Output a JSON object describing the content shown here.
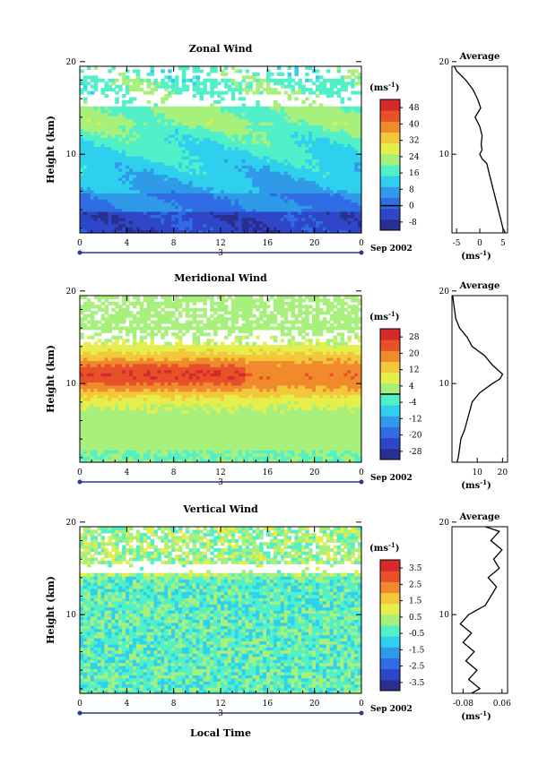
{
  "figure": {
    "xlabel": "Local Time",
    "date_label": "Sep 2002",
    "day_label": "3",
    "unit_label": "(ms",
    "unit_exp": "-1",
    "unit_close": ")"
  },
  "chart_data": [
    {
      "type": "heatmap",
      "title": "Zonal Wind",
      "ylabel": "Height (km)",
      "x_ticks": [
        "0",
        "4",
        "8",
        "12",
        "16",
        "20",
        "0"
      ],
      "y_ticks": [
        "10",
        "20"
      ],
      "xlim": [
        0,
        24
      ],
      "ylim": [
        1.5,
        19.5
      ],
      "colorbar": {
        "ticks": [
          "48",
          "40",
          "32",
          "24",
          "16",
          "8",
          "0",
          "-8"
        ],
        "min": -12,
        "max": 52,
        "zero_line": 0
      },
      "average_panel": {
        "title": "Average",
        "x_ticks": [
          "-5",
          "0",
          "5"
        ],
        "xlim": [
          -6,
          6
        ],
        "xlabel": "(ms",
        "profile": [
          [
            1.5,
            5.5
          ],
          [
            2,
            5
          ],
          [
            3,
            4.5
          ],
          [
            4,
            4
          ],
          [
            5,
            3.5
          ],
          [
            6,
            3
          ],
          [
            7,
            2.5
          ],
          [
            8,
            2
          ],
          [
            9,
            1.5
          ],
          [
            9.5,
            0.5
          ],
          [
            10,
            0
          ],
          [
            10.5,
            0.5
          ],
          [
            11,
            0.3
          ],
          [
            12,
            0.5
          ],
          [
            13,
            0
          ],
          [
            14,
            -1
          ],
          [
            15,
            0.2
          ],
          [
            16,
            -0.5
          ],
          [
            17,
            -1.5
          ],
          [
            18,
            -3
          ],
          [
            19,
            -5
          ],
          [
            19.5,
            -5.5
          ]
        ]
      }
    },
    {
      "type": "heatmap",
      "title": "Meridional Wind",
      "ylabel": "Height (km)",
      "x_ticks": [
        "0",
        "4",
        "8",
        "12",
        "16",
        "20",
        "0"
      ],
      "y_ticks": [
        "10",
        "20"
      ],
      "xlim": [
        0,
        24
      ],
      "ylim": [
        1.5,
        19.5
      ],
      "colorbar": {
        "ticks": [
          "28",
          "20",
          "12",
          "4",
          "-4",
          "-12",
          "-20",
          "-28"
        ],
        "min": -32,
        "max": 32,
        "zero_line": 0
      },
      "average_panel": {
        "title": "Average",
        "x_ticks": [
          "10",
          "20"
        ],
        "xlim": [
          0,
          22
        ],
        "xlabel": "(ms",
        "profile": [
          [
            1.5,
            2
          ],
          [
            2,
            2.5
          ],
          [
            3,
            3
          ],
          [
            4,
            3.5
          ],
          [
            5,
            5
          ],
          [
            6,
            6
          ],
          [
            7,
            7
          ],
          [
            8,
            8
          ],
          [
            9,
            11
          ],
          [
            10,
            16
          ],
          [
            10.5,
            19
          ],
          [
            11,
            20
          ],
          [
            12,
            16
          ],
          [
            13,
            13
          ],
          [
            14,
            8
          ],
          [
            15,
            6
          ],
          [
            16,
            3
          ],
          [
            17,
            1.5
          ],
          [
            18,
            1
          ],
          [
            19,
            0.5
          ],
          [
            19.5,
            0.3
          ]
        ]
      }
    },
    {
      "type": "heatmap",
      "title": "Vertical Wind",
      "ylabel": "Height (km)",
      "x_ticks": [
        "0",
        "4",
        "8",
        "12",
        "16",
        "20",
        "0"
      ],
      "y_ticks": [
        "10",
        "20"
      ],
      "xlim": [
        0,
        24
      ],
      "ylim": [
        1.5,
        19.5
      ],
      "colorbar": {
        "ticks": [
          "3.5",
          "2.5",
          "1.5",
          "0.5",
          "-0.5",
          "-1.5",
          "-2.5",
          "-3.5"
        ],
        "min": -4,
        "max": 4,
        "zero_line": null
      },
      "average_panel": {
        "title": "Average",
        "x_ticks": [
          "-0.08",
          "0.06"
        ],
        "xlim": [
          -0.12,
          0.08
        ],
        "xlabel": "(ms",
        "profile": [
          [
            1.5,
            -0.05
          ],
          [
            2,
            -0.02
          ],
          [
            3,
            -0.06
          ],
          [
            4,
            -0.03
          ],
          [
            5,
            -0.07
          ],
          [
            6,
            -0.04
          ],
          [
            7,
            -0.08
          ],
          [
            8,
            -0.05
          ],
          [
            9,
            -0.09
          ],
          [
            10,
            -0.06
          ],
          [
            11,
            0.0
          ],
          [
            12,
            0.02
          ],
          [
            13,
            0.04
          ],
          [
            14,
            0.01
          ],
          [
            15,
            0.05
          ],
          [
            16,
            0.03
          ],
          [
            17,
            0.06
          ],
          [
            18,
            0.02
          ],
          [
            19,
            0.05
          ],
          [
            19.5,
            0.0
          ]
        ]
      }
    }
  ]
}
